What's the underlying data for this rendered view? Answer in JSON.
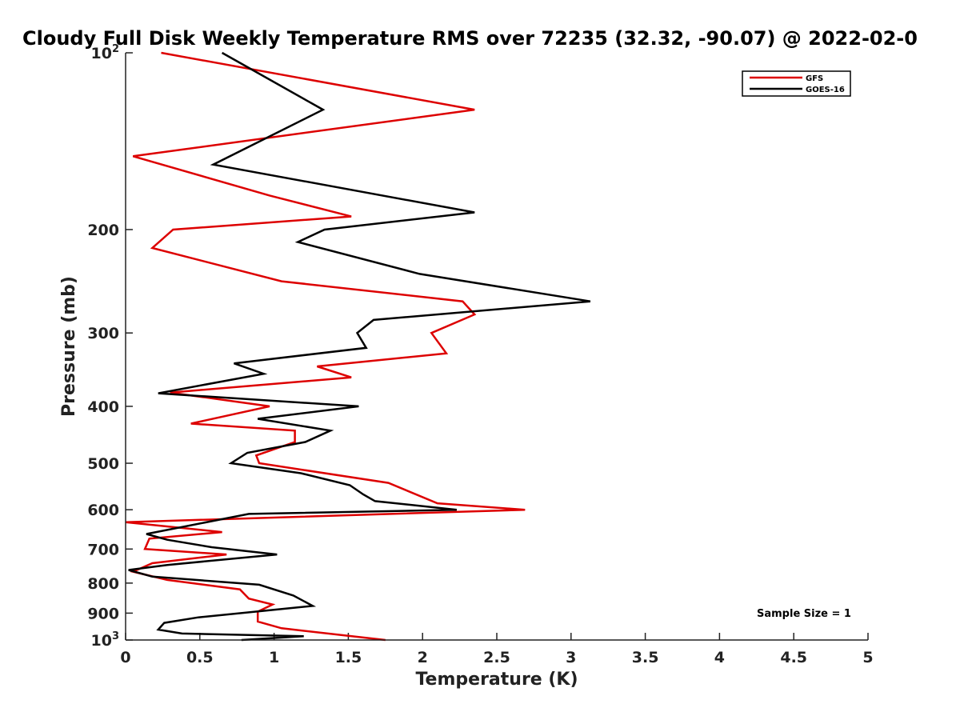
{
  "chart_data": {
    "type": "line",
    "title": "Cloudy Full Disk Weekly Temperature RMS over 72235 (32.32, -90.07) @ 2022-02-0",
    "xlabel": "Temperature (K)",
    "ylabel": "Pressure (mb)",
    "xlim": [
      0,
      5
    ],
    "ylim": [
      1000,
      100
    ],
    "y_scale": "log",
    "y_reversed": true,
    "grid": false,
    "legend_placement": "top-right",
    "x_ticks": [
      {
        "value": 0,
        "label": "0"
      },
      {
        "value": 0.5,
        "label": "0.5"
      },
      {
        "value": 1,
        "label": "1"
      },
      {
        "value": 1.5,
        "label": "1.5"
      },
      {
        "value": 2,
        "label": "2"
      },
      {
        "value": 2.5,
        "label": "2.5"
      },
      {
        "value": 3,
        "label": "3"
      },
      {
        "value": 3.5,
        "label": "3.5"
      },
      {
        "value": 4,
        "label": "4"
      },
      {
        "value": 4.5,
        "label": "4.5"
      },
      {
        "value": 5,
        "label": "5"
      }
    ],
    "y_ticks": [
      {
        "value": 100,
        "base": "10",
        "exp": "2"
      },
      {
        "value": 200,
        "base": "200",
        "exp": ""
      },
      {
        "value": 300,
        "base": "300",
        "exp": ""
      },
      {
        "value": 400,
        "base": "400",
        "exp": ""
      },
      {
        "value": 500,
        "base": "500",
        "exp": ""
      },
      {
        "value": 600,
        "base": "600",
        "exp": ""
      },
      {
        "value": 700,
        "base": "700",
        "exp": ""
      },
      {
        "value": 800,
        "base": "800",
        "exp": ""
      },
      {
        "value": 900,
        "base": "900",
        "exp": ""
      },
      {
        "value": 1000,
        "base": "10",
        "exp": "3"
      }
    ],
    "series": [
      {
        "name": "GFS",
        "color": "#dd0000",
        "points": [
          [
            0.24,
            100
          ],
          [
            2.35,
            125
          ],
          [
            0.05,
            150
          ],
          [
            0.97,
            175
          ],
          [
            1.52,
            190
          ],
          [
            0.32,
            200
          ],
          [
            0.18,
            215
          ],
          [
            1.05,
            245
          ],
          [
            2.27,
            265
          ],
          [
            2.35,
            279
          ],
          [
            2.06,
            300
          ],
          [
            2.16,
            325
          ],
          [
            1.29,
            342
          ],
          [
            1.52,
            357
          ],
          [
            0.3,
            379
          ],
          [
            0.97,
            400
          ],
          [
            0.44,
            428
          ],
          [
            1.14,
            440
          ],
          [
            1.14,
            460
          ],
          [
            0.88,
            485
          ],
          [
            0.9,
            500
          ],
          [
            1.77,
            540
          ],
          [
            2.1,
            585
          ],
          [
            2.69,
            600
          ],
          [
            0.0,
            630
          ],
          [
            0.65,
            655
          ],
          [
            0.16,
            672
          ],
          [
            0.13,
            700
          ],
          [
            0.68,
            715
          ],
          [
            0.18,
            740
          ],
          [
            0.05,
            765
          ],
          [
            0.28,
            790
          ],
          [
            0.77,
            820
          ],
          [
            0.83,
            850
          ],
          [
            0.99,
            870
          ],
          [
            0.89,
            895
          ],
          [
            0.89,
            930
          ],
          [
            1.05,
            955
          ],
          [
            1.75,
            1000
          ]
        ]
      },
      {
        "name": "GOES-16",
        "color": "#000000",
        "points": [
          [
            0.65,
            100
          ],
          [
            1.33,
            125
          ],
          [
            0.59,
            155
          ],
          [
            2.35,
            187
          ],
          [
            1.34,
            200
          ],
          [
            1.16,
            210
          ],
          [
            1.98,
            238
          ],
          [
            3.13,
            265
          ],
          [
            1.67,
            285
          ],
          [
            1.56,
            300
          ],
          [
            1.62,
            318
          ],
          [
            0.73,
            338
          ],
          [
            0.93,
            352
          ],
          [
            0.22,
            380
          ],
          [
            1.57,
            400
          ],
          [
            0.89,
            420
          ],
          [
            1.38,
            440
          ],
          [
            1.21,
            460
          ],
          [
            0.82,
            480
          ],
          [
            0.71,
            500
          ],
          [
            1.18,
            520
          ],
          [
            1.51,
            545
          ],
          [
            1.6,
            565
          ],
          [
            1.68,
            580
          ],
          [
            2.23,
            600
          ],
          [
            0.83,
            610
          ],
          [
            0.14,
            660
          ],
          [
            0.28,
            675
          ],
          [
            0.58,
            695
          ],
          [
            1.02,
            715
          ],
          [
            0.28,
            745
          ],
          [
            0.02,
            760
          ],
          [
            0.18,
            780
          ],
          [
            0.9,
            805
          ],
          [
            1.13,
            840
          ],
          [
            1.26,
            875
          ],
          [
            0.49,
            915
          ],
          [
            0.26,
            935
          ],
          [
            0.22,
            960
          ],
          [
            0.38,
            975
          ],
          [
            1.2,
            985
          ],
          [
            0.78,
            1000
          ]
        ]
      }
    ],
    "annotation": "Sample Size = 1"
  }
}
